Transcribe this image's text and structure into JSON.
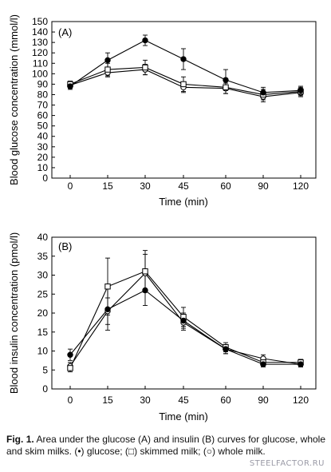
{
  "chart_data": [
    {
      "type": "line",
      "panel_label": "(A)",
      "xlabel": "Time (min)",
      "ylabel": "Blood glucose concentration (mmol/l)",
      "categories": [
        "0",
        "15",
        "30",
        "45",
        "60",
        "90",
        "120"
      ],
      "ylim": [
        0,
        150
      ],
      "yticks": [
        "0",
        "10",
        "20",
        "30",
        "40",
        "50",
        "60",
        "70",
        "80",
        "90",
        "100",
        "110",
        "120",
        "130",
        "140",
        "150"
      ],
      "ytick_values": [
        0,
        10,
        20,
        30,
        40,
        50,
        60,
        70,
        80,
        90,
        100,
        110,
        120,
        130,
        140,
        150
      ],
      "series": [
        {
          "key": "glucose",
          "marker": "filled-circle",
          "values": [
            88,
            113,
            132,
            114,
            94,
            82,
            84
          ],
          "errors": [
            3,
            7,
            5,
            10,
            10,
            5,
            4
          ]
        },
        {
          "key": "skimmed",
          "marker": "open-square",
          "values": [
            90,
            104,
            106,
            90,
            87,
            80,
            83
          ],
          "errors": [
            3,
            6,
            7,
            7,
            6,
            5,
            4
          ]
        },
        {
          "key": "whole",
          "marker": "open-circle",
          "values": [
            89,
            101,
            104,
            87,
            86,
            78,
            82
          ],
          "errors": [
            3,
            4,
            5,
            5,
            5,
            5,
            4
          ]
        }
      ]
    },
    {
      "type": "line",
      "panel_label": "(B)",
      "xlabel": "Time (min)",
      "ylabel": "Blood insulin concentration (pmol/l)",
      "categories": [
        "0",
        "15",
        "30",
        "45",
        "60",
        "90",
        "120"
      ],
      "ylim": [
        0,
        40
      ],
      "yticks": [
        "0",
        "5",
        "10",
        "15",
        "20",
        "25",
        "30",
        "35",
        "40"
      ],
      "ytick_values": [
        0,
        5,
        10,
        15,
        20,
        25,
        30,
        35,
        40
      ],
      "series": [
        {
          "key": "glucose",
          "marker": "filled-circle",
          "values": [
            9,
            21,
            26,
            18,
            10.5,
            6.5,
            6.5
          ],
          "errors": [
            1.5,
            5.5,
            4,
            2,
            1.2,
            0.7,
            0.7
          ]
        },
        {
          "key": "skimmed",
          "marker": "open-square",
          "values": [
            5.5,
            27,
            31,
            19,
            11,
            7,
            7
          ],
          "errors": [
            1,
            7.5,
            5.5,
            2.5,
            1.2,
            0.8,
            0.8
          ]
        },
        {
          "key": "whole",
          "marker": "open-circle",
          "values": [
            6,
            20.5,
            30.5,
            17.5,
            10.5,
            8,
            6.5
          ],
          "errors": [
            1,
            3.5,
            5,
            2,
            1.2,
            1,
            0.7
          ]
        }
      ]
    }
  ],
  "caption": {
    "label": "Fig. 1.",
    "text": "Area under the glucose (A) and insulin (B) curves for glucose, whole and skim milks. (•) glucose; (□) skimmed milk; (○) whole milk."
  },
  "watermark": "STEELFACTOR.RU"
}
